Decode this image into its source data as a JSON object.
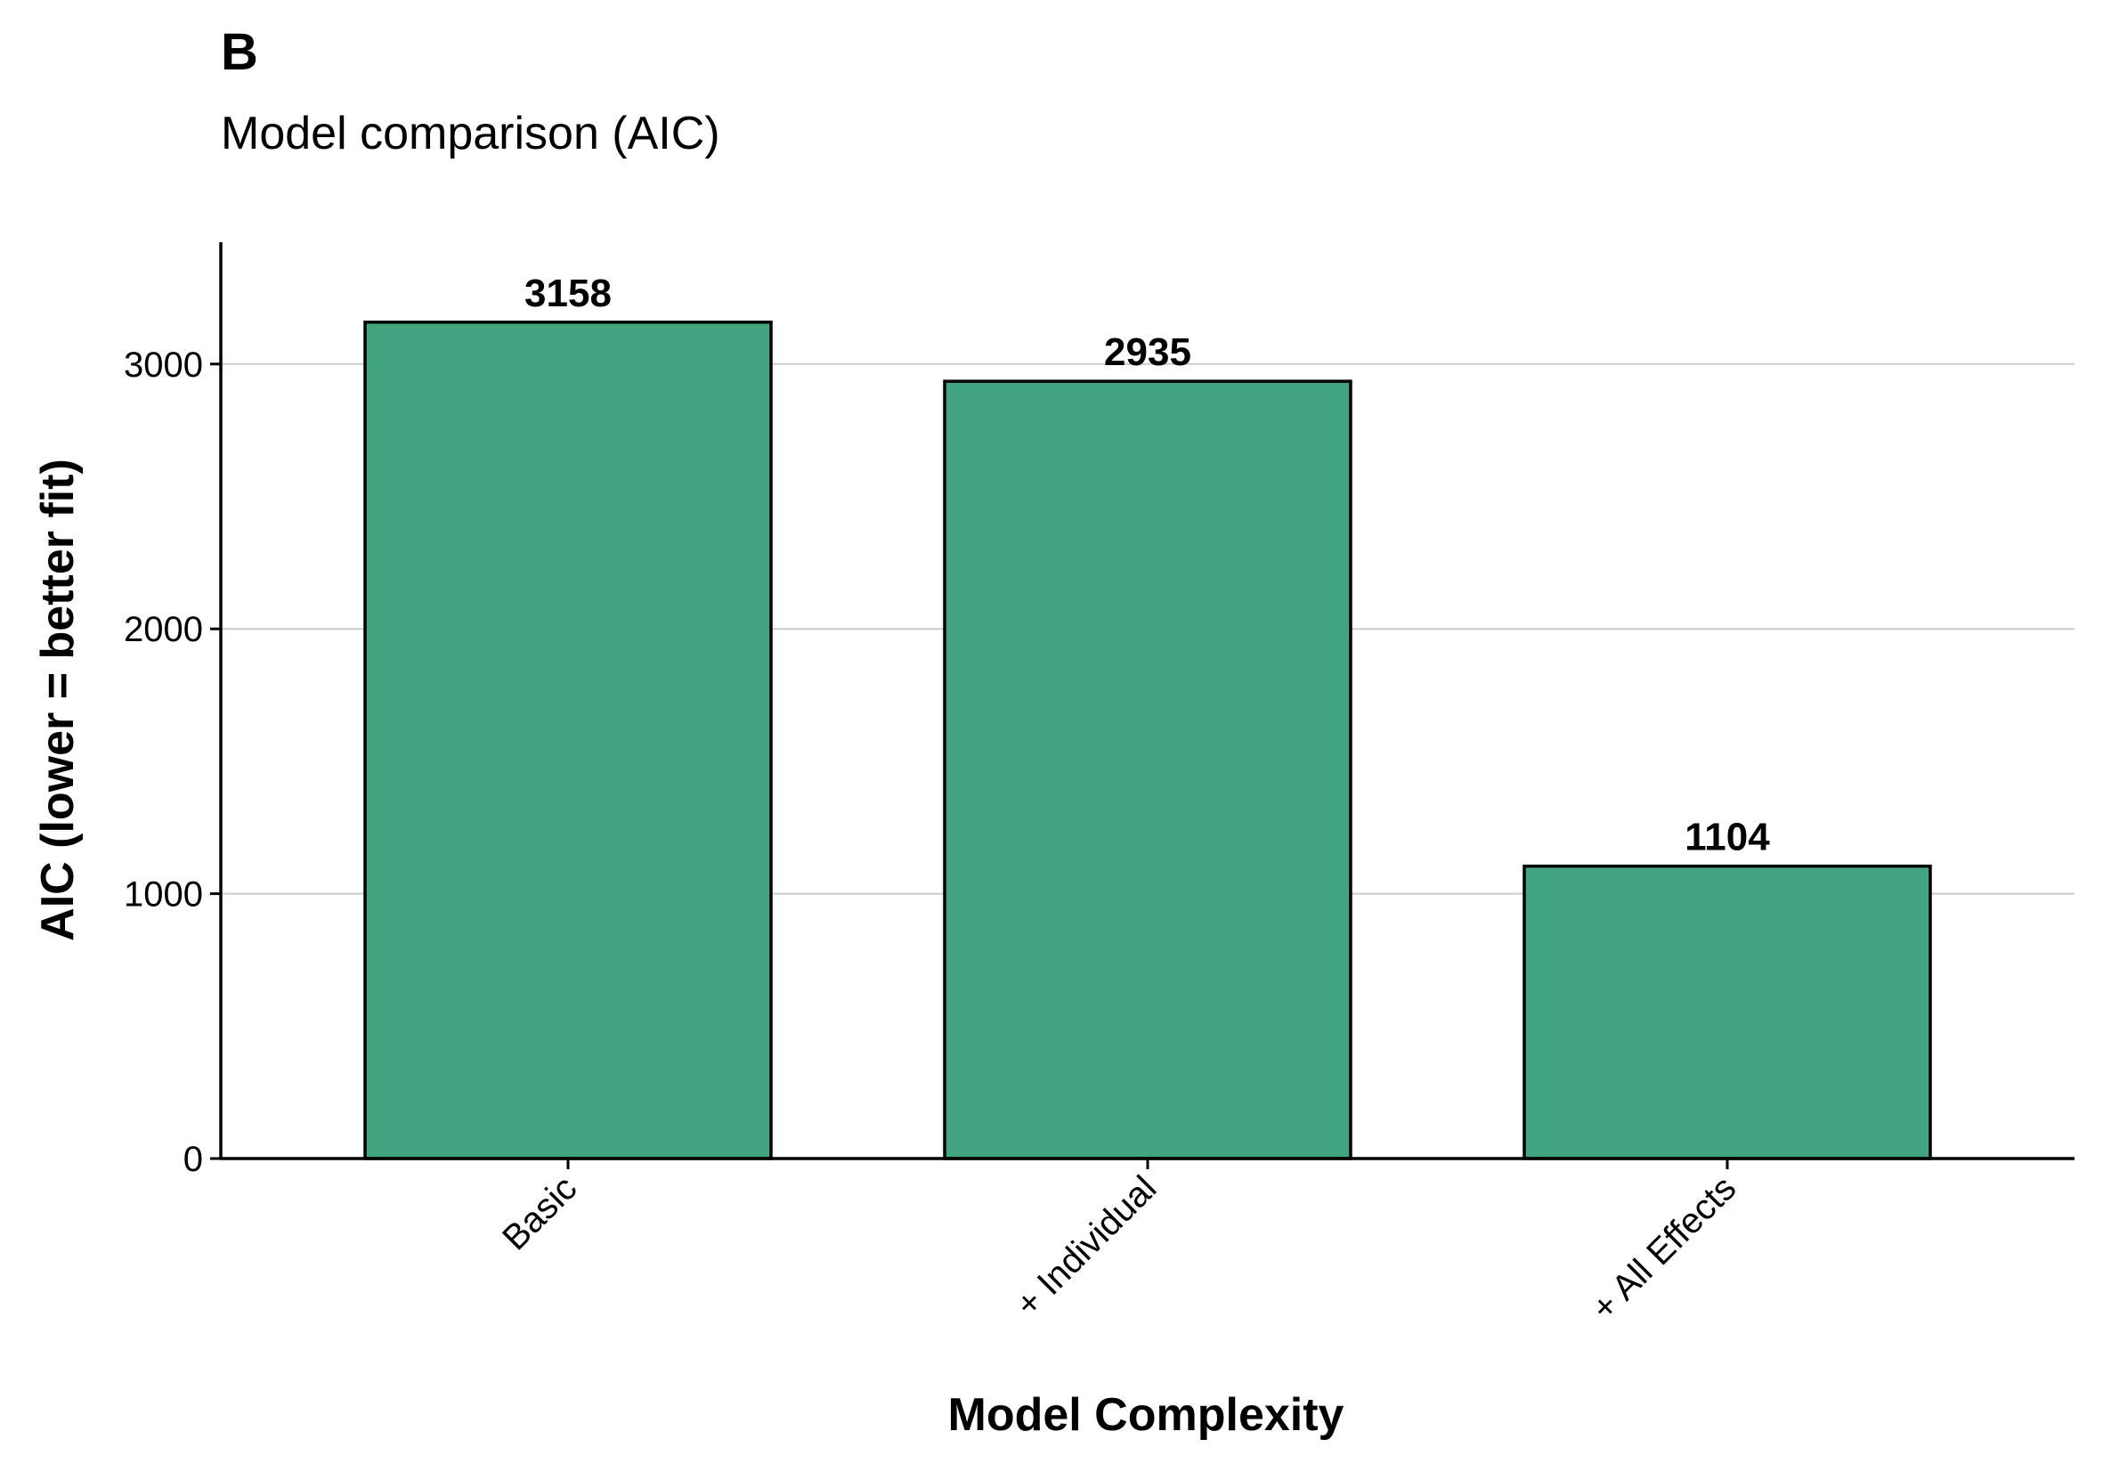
{
  "panel_label": "B",
  "subtitle": "Model comparison (AIC)",
  "colors": {
    "bar_fill": "#42a57f",
    "bar_stroke": "#000000",
    "grid": "#cccccc",
    "axis": "#000000"
  },
  "chart_data": {
    "type": "bar",
    "title": "Model comparison (AIC)",
    "categories": [
      "Basic",
      "+ Individual",
      "+ All Effects"
    ],
    "values": [
      3158,
      2935,
      1104
    ],
    "data_labels": [
      "3158",
      "2935",
      "1104"
    ],
    "xlabel": "Model Complexity",
    "ylabel": "AIC (lower = better fit)",
    "ylim": [
      0,
      3460
    ],
    "yticks": [
      0,
      1000,
      2000,
      3000
    ],
    "ytick_labels": [
      "0",
      "1000",
      "2000",
      "3000"
    ],
    "grid": "horizontal",
    "legend": "none"
  }
}
